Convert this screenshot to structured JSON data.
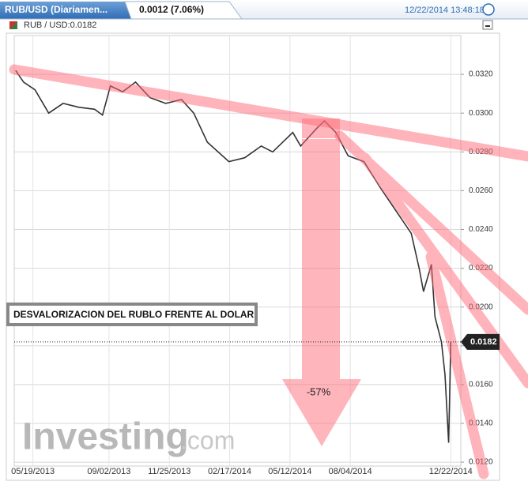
{
  "header": {
    "tab": "RUB/USD (Diariamen...",
    "change": "0.0012 (7.06%)",
    "timestamp": "12/22/2014 13:48:18",
    "subtitle": "RUB / USD:0.0182"
  },
  "chart_data": {
    "type": "line",
    "annotations": [
      "DESVALORIZACION DEL RUBLO FRENTE AL DOLAR",
      "-57%"
    ],
    "watermark": [
      "Investing",
      ".com"
    ],
    "price_tag": {
      "value": 0.0182,
      "label": "0.0182"
    },
    "x": [
      "04/25/2013",
      "05/06/2013",
      "05/22/2013",
      "06/10/2013",
      "06/30/2013",
      "07/22/2013",
      "08/13/2013",
      "08/24/2013",
      "09/04/2013",
      "09/21/2013",
      "10/09/2013",
      "10/29/2013",
      "11/20/2013",
      "12/12/2013",
      "12/29/2013",
      "01/17/2014",
      "02/16/2014",
      "03/10/2014",
      "04/02/2014",
      "04/18/2014",
      "05/16/2014",
      "05/27/2014",
      "06/18/2014",
      "06/29/2014",
      "07/15/2014",
      "08/01/2014",
      "08/23/2014",
      "09/14/2014",
      "10/06/2014",
      "10/28/2014",
      "11/08/2014",
      "11/14/2014",
      "11/25/2014",
      "11/30/2014",
      "12/09/2014",
      "12/14/2014",
      "12/19/2014",
      "12/22/2014"
    ],
    "series": [
      {
        "name": "RUB / USD",
        "color": "#333333",
        "values": [
          0.0322,
          0.0316,
          0.0312,
          0.03,
          0.0305,
          0.0303,
          0.0302,
          0.0299,
          0.0314,
          0.0311,
          0.0316,
          0.0308,
          0.0305,
          0.0307,
          0.03,
          0.0285,
          0.0275,
          0.0277,
          0.0283,
          0.028,
          0.029,
          0.0283,
          0.0292,
          0.0296,
          0.029,
          0.0278,
          0.0275,
          0.0262,
          0.025,
          0.0238,
          0.022,
          0.0208,
          0.0222,
          0.0195,
          0.0182,
          0.0165,
          0.013,
          0.0182
        ]
      }
    ],
    "xlim": [
      "04/23/2013",
      "01/05/2015"
    ],
    "xticks": [
      "05/19/2013",
      "09/02/2013",
      "11/25/2013",
      "02/17/2014",
      "05/12/2014",
      "08/04/2014",
      "12/22/2014"
    ],
    "ylim": [
      0.0118,
      0.034
    ],
    "yticks": [
      {
        "value": 0.012,
        "label": "0.0120"
      },
      {
        "value": 0.014,
        "label": "0.0140"
      },
      {
        "value": 0.016,
        "label": "0.0160"
      },
      {
        "value": 0.018,
        "label": "0.0180"
      },
      {
        "value": 0.02,
        "label": "0.0200"
      },
      {
        "value": 0.022,
        "label": "0.0220"
      },
      {
        "value": 0.024,
        "label": "0.0240"
      },
      {
        "value": 0.026,
        "label": "0.0260"
      },
      {
        "value": 0.028,
        "label": "0.0280"
      },
      {
        "value": 0.03,
        "label": "0.0300"
      },
      {
        "value": 0.032,
        "label": "0.0320"
      }
    ],
    "grid": true
  }
}
